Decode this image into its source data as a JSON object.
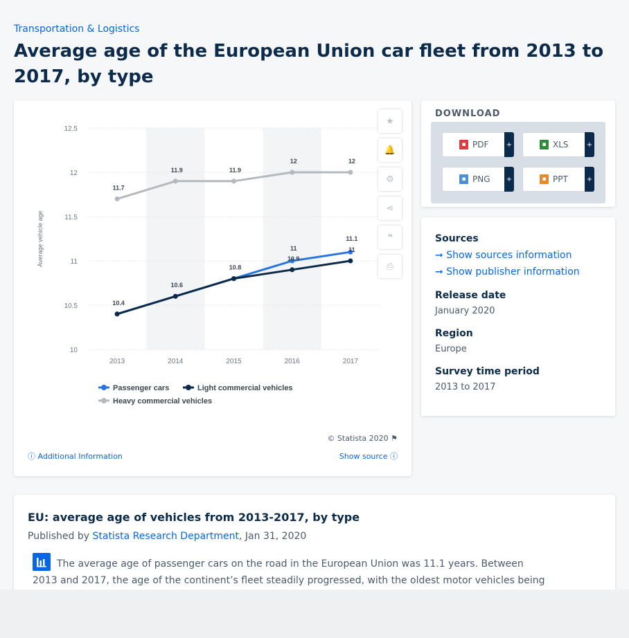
{
  "breadcrumb": "Transportation & Logistics",
  "page_title": "Average age of the European Union car fleet from 2013 to 2017, by type",
  "chart_data": {
    "type": "line",
    "categories": [
      "2013",
      "2014",
      "2015",
      "2016",
      "2017"
    ],
    "ylabel": "Average vehicle age",
    "ylim": [
      10,
      12.5
    ],
    "yticks": [
      "10",
      "10.5",
      "11",
      "11.5",
      "12",
      "12.5"
    ],
    "grid": true,
    "legend_position": "bottom-left",
    "series": [
      {
        "name": "Passenger cars",
        "color": "#2876dd",
        "values": [
          10.4,
          10.6,
          10.8,
          11,
          11.1
        ],
        "labels": [
          "10.4",
          "10.6",
          "10.8",
          "11",
          "11.1"
        ]
      },
      {
        "name": "Light commercial vehicles",
        "color": "#0c2b4a",
        "values": [
          10.4,
          10.6,
          10.8,
          10.9,
          11
        ],
        "labels": [
          "",
          "",
          "",
          "10.9",
          "11"
        ]
      },
      {
        "name": "Heavy commercial vehicles",
        "color": "#b4b9be",
        "values": [
          11.7,
          11.9,
          11.9,
          12,
          12
        ],
        "labels": [
          "11.7",
          "11.9",
          "11.9",
          "12",
          "12"
        ]
      }
    ]
  },
  "chart_footer": {
    "copyright": "© Statista 2020",
    "additional_info": "Additional Information",
    "show_source": "Show source"
  },
  "download": {
    "title": "DOWNLOAD",
    "buttons": [
      {
        "label": "PDF",
        "icon": "pdf-icon",
        "color": "#e0383f"
      },
      {
        "label": "XLS",
        "icon": "xls-icon",
        "color": "#2e8b3a"
      },
      {
        "label": "PNG",
        "icon": "png-icon",
        "color": "#4a8fd4"
      },
      {
        "label": "PPT",
        "icon": "ppt-icon",
        "color": "#e58a2c"
      }
    ],
    "plus": "+"
  },
  "info": {
    "sources_label": "Sources",
    "show_sources": "Show sources information",
    "show_publisher": "Show publisher information",
    "release_date_label": "Release date",
    "release_date": "January 2020",
    "region_label": "Region",
    "region": "Europe",
    "survey_label": "Survey time period",
    "survey": "2013 to 2017"
  },
  "article": {
    "title": "EU: average age of vehicles from 2013-2017, by type",
    "published_by": "Published by ",
    "publisher": "Statista Research Department",
    "date": ", Jan 31, 2020",
    "body": "The average age of passenger cars on the road in the European Union was 11.1 years. Between 2013 and 2017, the age of the continent’s fleet steadily progressed, with the oldest motor vehicles being heavy"
  }
}
